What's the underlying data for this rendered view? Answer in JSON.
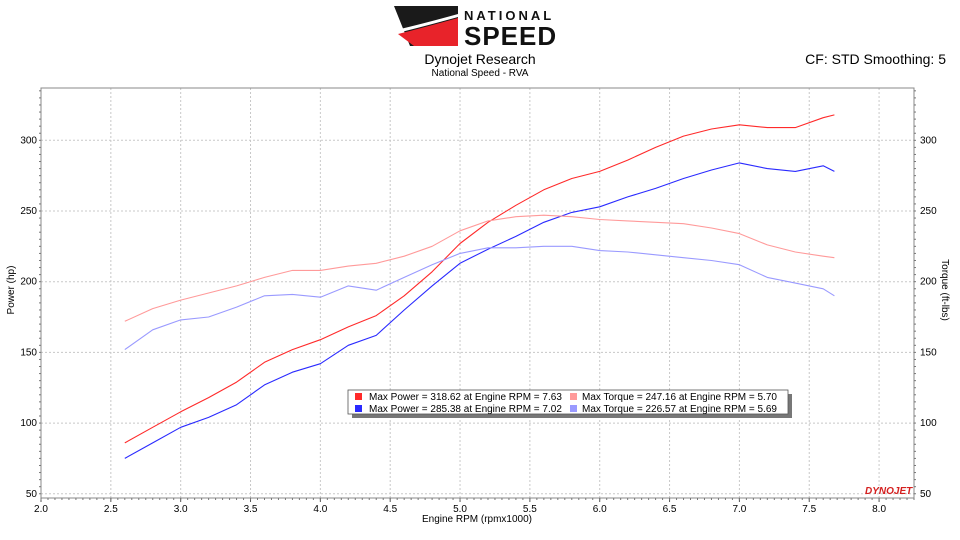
{
  "header": {
    "logo_top": "NATIONAL",
    "logo_bottom": "SPEED",
    "title": "Dynojet Research",
    "subtitle": "National Speed - RVA",
    "cf_info": "CF: STD Smoothing: 5"
  },
  "watermark": "DYNOJET",
  "colors": {
    "red_power": "#ff2a2a",
    "blue_power": "#2a2aff",
    "red_torque": "#ff9a9a",
    "blue_torque": "#9a9aff",
    "grid": "#c8c8c8",
    "plot_border": "#888888"
  },
  "chart_data": {
    "type": "line",
    "xlabel": "Engine RPM (rpmx1000)",
    "ylabel": "Power (hp)",
    "y2label": "Torque (ft-lbs)",
    "xlim": [
      2.0,
      8.25
    ],
    "ylim": [
      47,
      337
    ],
    "xticks": [
      "2.0",
      "2.5",
      "3.0",
      "3.5",
      "4.0",
      "4.5",
      "5.0",
      "5.5",
      "6.0",
      "6.5",
      "7.0",
      "7.5",
      "8.0"
    ],
    "yticks": [
      "50",
      "100",
      "150",
      "200",
      "250",
      "300"
    ],
    "grid": true,
    "legend_placement": "center-bottom",
    "series": [
      {
        "kind": "power-red",
        "x": [
          2.6,
          2.8,
          3.0,
          3.2,
          3.4,
          3.6,
          3.8,
          4.0,
          4.2,
          4.4,
          4.6,
          4.8,
          5.0,
          5.2,
          5.4,
          5.6,
          5.8,
          6.0,
          6.2,
          6.4,
          6.6,
          6.8,
          7.0,
          7.2,
          7.4,
          7.6,
          7.68
        ],
        "y": [
          86,
          97,
          108,
          118,
          129,
          143,
          152,
          159,
          168,
          176,
          190,
          207,
          227,
          242,
          254,
          265,
          273,
          278,
          286,
          295,
          303,
          308,
          311,
          309,
          309,
          316,
          318
        ]
      },
      {
        "kind": "power-blue",
        "x": [
          2.6,
          2.8,
          3.0,
          3.2,
          3.4,
          3.6,
          3.8,
          4.0,
          4.2,
          4.4,
          4.6,
          4.8,
          5.0,
          5.2,
          5.4,
          5.6,
          5.8,
          6.0,
          6.2,
          6.4,
          6.6,
          6.8,
          7.0,
          7.2,
          7.4,
          7.6,
          7.68
        ],
        "y": [
          75,
          86,
          97,
          104,
          113,
          127,
          136,
          142,
          155,
          162,
          180,
          197,
          213,
          223,
          232,
          242,
          249,
          253,
          260,
          266,
          273,
          279,
          284,
          280,
          278,
          282,
          278
        ]
      },
      {
        "kind": "torque-red",
        "x": [
          2.6,
          2.8,
          3.0,
          3.2,
          3.4,
          3.6,
          3.8,
          4.0,
          4.2,
          4.4,
          4.6,
          4.8,
          5.0,
          5.2,
          5.4,
          5.6,
          5.8,
          6.0,
          6.2,
          6.4,
          6.6,
          6.8,
          7.0,
          7.2,
          7.4,
          7.6,
          7.68
        ],
        "y": [
          172,
          181,
          187,
          192,
          197,
          203,
          208,
          208,
          211,
          213,
          218,
          225,
          236,
          243,
          246,
          247,
          246,
          244,
          243,
          242,
          241,
          238,
          234,
          226,
          221,
          218,
          217
        ]
      },
      {
        "kind": "torque-blue",
        "x": [
          2.6,
          2.8,
          3.0,
          3.2,
          3.4,
          3.6,
          3.8,
          4.0,
          4.2,
          4.4,
          4.6,
          4.8,
          5.0,
          5.2,
          5.4,
          5.6,
          5.8,
          6.0,
          6.2,
          6.4,
          6.6,
          6.8,
          7.0,
          7.2,
          7.4,
          7.6,
          7.68
        ],
        "y": [
          152,
          166,
          173,
          175,
          182,
          190,
          191,
          189,
          197,
          194,
          203,
          212,
          220,
          224,
          224,
          225,
          225,
          222,
          221,
          219,
          217,
          215,
          212,
          203,
          199,
          195,
          190
        ]
      }
    ],
    "legend": [
      "Max Power = 318.62 at Engine RPM = 7.63",
      "Max Torque = 247.16 at Engine RPM = 5.70",
      "Max Power = 285.38 at Engine RPM = 7.02",
      "Max Torque = 226.57 at Engine RPM = 5.69"
    ]
  }
}
